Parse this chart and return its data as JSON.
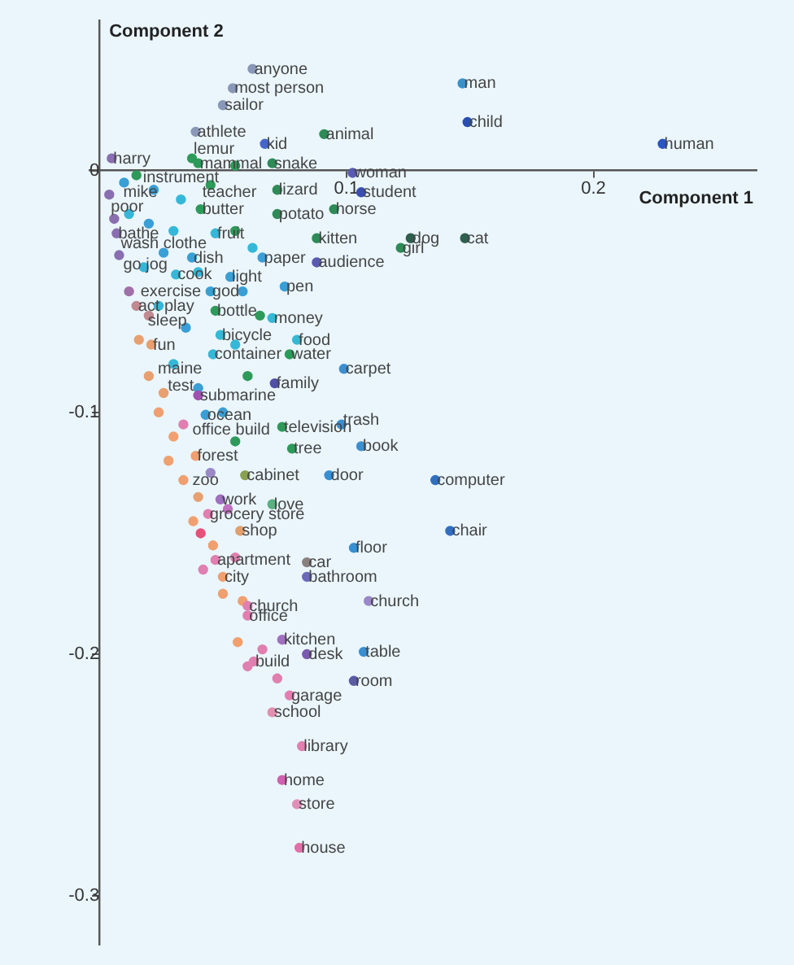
{
  "chart_data": {
    "type": "scatter",
    "xlabel": "Component 1",
    "ylabel": "Component 2",
    "xlim": [
      -0.004,
      0.266
    ],
    "ylim": [
      -0.32,
      0.062
    ],
    "xticks": [
      {
        "value": 0,
        "label": null
      },
      0.1,
      0.2
    ],
    "yticks": [
      -0.3,
      -0.2,
      -0.1,
      0
    ],
    "marker": "circle",
    "series": [
      {
        "x": [
          0.067,
          0.091,
          0.147,
          0.149,
          0.228,
          0.0375,
          0.055,
          0.07,
          0.1025,
          0.072,
          0.106,
          0.072,
          0.095,
          0.088,
          0.126,
          0.148,
          0.122,
          0.088,
          0.066,
          0.075,
          0.07,
          0.08,
          0.077,
          0.099,
          0.071,
          0.04,
          0.078,
          0.098,
          0.106,
          0.059,
          0.093,
          0.136,
          0.049,
          0.07,
          0.057,
          0.142,
          0.103,
          0.084,
          0.084,
          0.05,
          0.06,
          0.06,
          0.074,
          0.0625,
          0.084,
          0.107,
          0.103,
          0.077,
          0.07,
          0.082,
          0.074,
          0.08,
          0.081,
          0.041,
          0.047,
          0.045,
          0.074,
          0.062,
          0.054,
          0.05,
          0.039,
          0.005,
          0.007,
          0.0375,
          0.031,
          0.053,
          0.015,
          0.047,
          0.049,
          0.021,
          0.046,
          0.043,
          0.039,
          0.044,
          0.047,
          0.109,
          0.04
        ],
        "values": [
          0.011,
          0.015,
          0.036,
          0.02,
          0.011,
          0.005,
          0.002,
          0.003,
          -0.001,
          -0.008,
          -0.009,
          -0.018,
          -0.016,
          -0.028,
          -0.028,
          -0.028,
          -0.032,
          -0.038,
          -0.036,
          -0.048,
          -0.061,
          -0.07,
          -0.076,
          -0.082,
          -0.088,
          -0.093,
          -0.115,
          -0.105,
          -0.114,
          -0.126,
          -0.126,
          -0.128,
          -0.136,
          -0.138,
          -0.149,
          -0.149,
          -0.156,
          -0.162,
          -0.168,
          -0.168,
          -0.18,
          -0.184,
          -0.194,
          -0.203,
          -0.2,
          -0.199,
          -0.211,
          -0.217,
          -0.224,
          -0.238,
          -0.252,
          -0.262,
          -0.28,
          -0.016,
          -0.026,
          -0.05,
          -0.106,
          0.042,
          0.034,
          0.027,
          0.016,
          0.005,
          -0.026,
          -0.036,
          -0.043,
          -0.044,
          -0.056,
          -0.058,
          -0.068,
          -0.072,
          -0.076,
          -0.101,
          -0.118,
          -0.142,
          -0.161,
          -0.178,
          0.003
        ],
        "colors": [
          "#4466cc",
          "#2e8b57",
          "#3a90c8",
          "#2a4fb0",
          "#2a56c0",
          "#2e9a5a",
          "#2e9a5a",
          "#2e8b57",
          "#5a5ab0",
          "#2e8b57",
          "#3b4fb0",
          "#2e8b57",
          "#2e8b57",
          "#2e8b57",
          "#2f5f4f",
          "#2f5f4f",
          "#2e8b57",
          "#5a5ab0",
          "#3a9fd6",
          "#3a9fd6",
          "#35b8d8",
          "#35b8d8",
          "#2e9a5a",
          "#3a8fd0",
          "#5050a8",
          "#a050b0",
          "#2e9a5a",
          "#3a8fd0",
          "#3a8fd0",
          "#8aa050",
          "#3a8fd0",
          "#2f6fc0",
          "#a070c0",
          "#5ab080",
          "#e0a070",
          "#2f6fc0",
          "#3a8fd0",
          "#8a8080",
          "#6a6ab8",
          "#f0a070",
          "#e07fb0",
          "#e07fb0",
          "#a070c0",
          "#e07fb0",
          "#7a5ab0",
          "#3a8fd0",
          "#5a5aa8",
          "#e07fb0",
          "#e090b0",
          "#e07fb0",
          "#d060b0",
          "#e090b8",
          "#e070a8",
          "#2e9a5a",
          "#35b8d8",
          "#3a9fd6",
          "#2e9a5a",
          "#8a98b8",
          "#8a98b8",
          "#8a98b8",
          "#8a98b8",
          "#8a6fb0",
          "#8a6fb0",
          "#3a9fd6",
          "#35b8d8",
          "#3a9fd6",
          "#c08a90",
          "#2e9a5a",
          "#35b8d8",
          "#e8a070",
          "#35b8d8",
          "#3a9fd6",
          "#f0a070",
          "#e07fb0",
          "#e07fb0",
          "#9a88c8",
          "#2e9a5a"
        ]
      },
      {
        "x": [
          0.01,
          0.015,
          0.022,
          0.033,
          0.045,
          0.012,
          0.02,
          0.03,
          0.055,
          0.062,
          0.006,
          0.008,
          0.018,
          0.026,
          0.04,
          0.058,
          0.065,
          0.012,
          0.024,
          0.035,
          0.055,
          0.06,
          0.016,
          0.02,
          0.03,
          0.04,
          0.024,
          0.03,
          0.034,
          0.05,
          0.055,
          0.028,
          0.034,
          0.04,
          0.045,
          0.038,
          0.041,
          0.046,
          0.052,
          0.042,
          0.05,
          0.055,
          0.058,
          0.056,
          0.06,
          0.066,
          0.072,
          0.004,
          0.02,
          0.026
        ],
        "values": [
          -0.005,
          -0.002,
          -0.008,
          -0.012,
          -0.006,
          -0.018,
          -0.022,
          -0.025,
          -0.025,
          -0.032,
          -0.02,
          -0.035,
          -0.04,
          -0.034,
          -0.042,
          -0.05,
          -0.06,
          -0.05,
          -0.056,
          -0.065,
          -0.072,
          -0.085,
          -0.07,
          -0.085,
          -0.08,
          -0.09,
          -0.1,
          -0.11,
          -0.105,
          -0.1,
          -0.112,
          -0.12,
          -0.128,
          -0.135,
          -0.125,
          -0.145,
          -0.15,
          -0.155,
          -0.14,
          -0.165,
          -0.175,
          -0.16,
          -0.178,
          -0.195,
          -0.205,
          -0.198,
          -0.21,
          -0.01,
          -0.06,
          -0.092
        ],
        "colors": [
          "#3a9fd6",
          "#2e9a5a",
          "#3a9fd6",
          "#35b8d8",
          "#2e9a5a",
          "#35b8d8",
          "#3a9fd6",
          "#35b8d8",
          "#2e9a5a",
          "#35b8d8",
          "#8a6fb0",
          "#8a6fb0",
          "#35b8d8",
          "#3a9fd6",
          "#35b8d8",
          "#3a9fd6",
          "#2e9a5a",
          "#a070a8",
          "#35b8d8",
          "#3a9fd6",
          "#35b8d8",
          "#2e9a5a",
          "#e8a070",
          "#e8a070",
          "#35b8d8",
          "#3a9fd6",
          "#f0a070",
          "#f0a070",
          "#e07fb0",
          "#3a9fd6",
          "#2e9a5a",
          "#f0a070",
          "#f0a070",
          "#e8a070",
          "#9a88c8",
          "#f0a070",
          "#e8507a",
          "#f0a070",
          "#c070c0",
          "#e07fb0",
          "#f0a070",
          "#e07fb0",
          "#f0a070",
          "#f0a070",
          "#e07fb0",
          "#e07fb0",
          "#e07fb0",
          "#8a6fb0",
          "#c08a90",
          "#e8a070"
        ]
      }
    ],
    "annotations": [
      {
        "text": "anyone",
        "x": 0.062,
        "y": 0.042
      },
      {
        "text": "most person",
        "x": 0.054,
        "y": 0.034
      },
      {
        "text": "sailor",
        "x": 0.05,
        "y": 0.027
      },
      {
        "text": "athlete",
        "x": 0.039,
        "y": 0.016
      },
      {
        "text": "kid",
        "x": 0.067,
        "y": 0.011
      },
      {
        "text": "animal",
        "x": 0.091,
        "y": 0.015
      },
      {
        "text": "man",
        "x": 0.147,
        "y": 0.036
      },
      {
        "text": "child",
        "x": 0.149,
        "y": 0.02
      },
      {
        "text": "human",
        "x": 0.228,
        "y": 0.011
      },
      {
        "text": "harry",
        "x": 0.005,
        "y": 0.005
      },
      {
        "text": "lemur",
        "x": 0.0375,
        "y": 0.009
      },
      {
        "text": "mammal",
        "x": 0.04,
        "y": 0.003
      },
      {
        "text": "snake",
        "x": 0.07,
        "y": 0.003
      },
      {
        "text": "woman",
        "x": 0.1025,
        "y": -0.001
      },
      {
        "text": "instrument",
        "x": 0.017,
        "y": -0.003
      },
      {
        "text": "lizard",
        "x": 0.072,
        "y": -0.008
      },
      {
        "text": "student",
        "x": 0.106,
        "y": -0.009
      },
      {
        "text": "mike",
        "x": 0.009,
        "y": -0.009
      },
      {
        "text": "teacher",
        "x": 0.041,
        "y": -0.009
      },
      {
        "text": "poor",
        "x": 0.004,
        "y": -0.015
      },
      {
        "text": "butter",
        "x": 0.041,
        "y": -0.016
      },
      {
        "text": "potato",
        "x": 0.072,
        "y": -0.018
      },
      {
        "text": "horse",
        "x": 0.095,
        "y": -0.016
      },
      {
        "text": "bathe",
        "x": 0.007,
        "y": -0.026
      },
      {
        "text": "fruit",
        "x": 0.047,
        "y": -0.026
      },
      {
        "text": "kitten",
        "x": 0.088,
        "y": -0.028
      },
      {
        "text": "dog",
        "x": 0.126,
        "y": -0.028
      },
      {
        "text": "cat",
        "x": 0.148,
        "y": -0.028
      },
      {
        "text": "girl",
        "x": 0.122,
        "y": -0.032
      },
      {
        "text": "audience",
        "x": 0.088,
        "y": -0.038
      },
      {
        "text": "wash clothe",
        "x": 0.008,
        "y": -0.03
      },
      {
        "text": "dish",
        "x": 0.0375,
        "y": -0.036
      },
      {
        "text": "paper",
        "x": 0.066,
        "y": -0.036
      },
      {
        "text": "go jog",
        "x": 0.009,
        "y": -0.039
      },
      {
        "text": "cook",
        "x": 0.031,
        "y": -0.043
      },
      {
        "text": "light",
        "x": 0.053,
        "y": -0.044
      },
      {
        "text": "pen",
        "x": 0.075,
        "y": -0.048
      },
      {
        "text": "exercise",
        "x": 0.016,
        "y": -0.05
      },
      {
        "text": "god",
        "x": 0.045,
        "y": -0.05
      },
      {
        "text": "act play",
        "x": 0.015,
        "y": -0.056
      },
      {
        "text": "bottle",
        "x": 0.047,
        "y": -0.058
      },
      {
        "text": "money",
        "x": 0.07,
        "y": -0.061
      },
      {
        "text": "sleep",
        "x": 0.019,
        "y": -0.062
      },
      {
        "text": "bicycle",
        "x": 0.049,
        "y": -0.068
      },
      {
        "text": "food",
        "x": 0.08,
        "y": -0.07
      },
      {
        "text": "fun",
        "x": 0.021,
        "y": -0.072
      },
      {
        "text": "container",
        "x": 0.046,
        "y": -0.076
      },
      {
        "text": "water",
        "x": 0.077,
        "y": -0.076
      },
      {
        "text": "carpet",
        "x": 0.099,
        "y": -0.082
      },
      {
        "text": "maine",
        "x": 0.023,
        "y": -0.082
      },
      {
        "text": "family",
        "x": 0.071,
        "y": -0.088
      },
      {
        "text": "test",
        "x": 0.027,
        "y": -0.089
      },
      {
        "text": "submarine",
        "x": 0.04,
        "y": -0.093
      },
      {
        "text": "ocean",
        "x": 0.043,
        "y": -0.101
      },
      {
        "text": "office build",
        "x": 0.037,
        "y": -0.107
      },
      {
        "text": "television",
        "x": 0.074,
        "y": -0.106
      },
      {
        "text": "trash",
        "x": 0.098,
        "y": -0.103
      },
      {
        "text": "tree",
        "x": 0.078,
        "y": -0.115
      },
      {
        "text": "book",
        "x": 0.106,
        "y": -0.114
      },
      {
        "text": "forest",
        "x": 0.039,
        "y": -0.118
      },
      {
        "text": "cabinet",
        "x": 0.059,
        "y": -0.126
      },
      {
        "text": "door",
        "x": 0.093,
        "y": -0.126
      },
      {
        "text": "computer",
        "x": 0.136,
        "y": -0.128
      },
      {
        "text": "zoo",
        "x": 0.037,
        "y": -0.128
      },
      {
        "text": "work",
        "x": 0.049,
        "y": -0.136
      },
      {
        "text": "love",
        "x": 0.07,
        "y": -0.138
      },
      {
        "text": "grocery store",
        "x": 0.044,
        "y": -0.142
      },
      {
        "text": "shop",
        "x": 0.057,
        "y": -0.149
      },
      {
        "text": "chair",
        "x": 0.142,
        "y": -0.149
      },
      {
        "text": "floor",
        "x": 0.103,
        "y": -0.156
      },
      {
        "text": "apartment",
        "x": 0.047,
        "y": -0.161
      },
      {
        "text": "car",
        "x": 0.084,
        "y": -0.162
      },
      {
        "text": "bathroom",
        "x": 0.084,
        "y": -0.168
      },
      {
        "text": "city",
        "x": 0.05,
        "y": -0.168
      },
      {
        "text": "church",
        "x": 0.06,
        "y": -0.18
      },
      {
        "text": "church",
        "x": 0.109,
        "y": -0.178
      },
      {
        "text": "office",
        "x": 0.06,
        "y": -0.184
      },
      {
        "text": "kitchen",
        "x": 0.074,
        "y": -0.194
      },
      {
        "text": "build",
        "x": 0.0625,
        "y": -0.203
      },
      {
        "text": "desk",
        "x": 0.084,
        "y": -0.2
      },
      {
        "text": "table",
        "x": 0.107,
        "y": -0.199
      },
      {
        "text": "room",
        "x": 0.103,
        "y": -0.211
      },
      {
        "text": "garage",
        "x": 0.077,
        "y": -0.217
      },
      {
        "text": "school",
        "x": 0.07,
        "y": -0.224
      },
      {
        "text": "library",
        "x": 0.082,
        "y": -0.238
      },
      {
        "text": "home",
        "x": 0.074,
        "y": -0.252
      },
      {
        "text": "store",
        "x": 0.08,
        "y": -0.262
      },
      {
        "text": "house",
        "x": 0.081,
        "y": -0.28
      }
    ]
  }
}
